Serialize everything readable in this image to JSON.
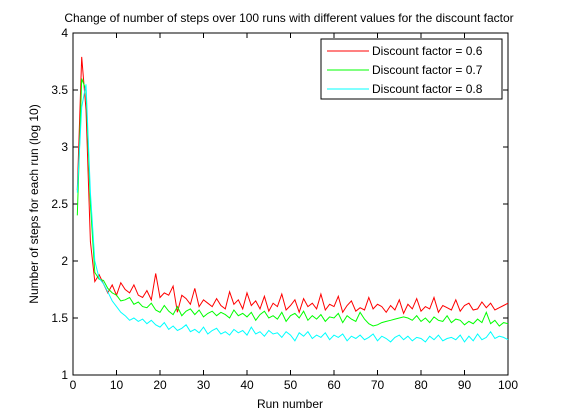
{
  "chart_data": {
    "type": "line",
    "title": "Change of number of steps over 100 runs with different values for the discount factor",
    "xlabel": "Run number",
    "ylabel": "Number of steps for each run (log 10)",
    "xlim": [
      0,
      100
    ],
    "ylim": [
      1,
      4
    ],
    "xticks": [
      "0",
      "10",
      "20",
      "30",
      "40",
      "50",
      "60",
      "70",
      "80",
      "90",
      "100"
    ],
    "yticks": [
      "1",
      "1.5",
      "2",
      "2.5",
      "3",
      "3.5",
      "4"
    ],
    "legend_position": "top-right",
    "grid": false,
    "x": [
      1,
      2,
      3,
      4,
      5,
      6,
      7,
      8,
      9,
      10,
      11,
      12,
      13,
      14,
      15,
      16,
      17,
      18,
      19,
      20,
      21,
      22,
      23,
      24,
      25,
      26,
      27,
      28,
      29,
      30,
      31,
      32,
      33,
      34,
      35,
      36,
      37,
      38,
      39,
      40,
      41,
      42,
      43,
      44,
      45,
      46,
      47,
      48,
      49,
      50,
      51,
      52,
      53,
      54,
      55,
      56,
      57,
      58,
      59,
      60,
      61,
      62,
      63,
      64,
      65,
      66,
      67,
      68,
      69,
      70,
      71,
      72,
      73,
      74,
      75,
      76,
      77,
      78,
      79,
      80,
      81,
      82,
      83,
      84,
      85,
      86,
      87,
      88,
      89,
      90,
      91,
      92,
      93,
      94,
      95,
      96,
      97,
      98,
      99,
      100
    ],
    "series": [
      {
        "name": "Discount factor = 0.6",
        "color": "#ff0000",
        "values": [
          2.62,
          3.79,
          3.33,
          2.17,
          1.82,
          1.88,
          1.8,
          1.72,
          1.79,
          1.7,
          1.81,
          1.75,
          1.72,
          1.79,
          1.7,
          1.68,
          1.74,
          1.66,
          1.89,
          1.68,
          1.72,
          1.7,
          1.78,
          1.55,
          1.7,
          1.67,
          1.62,
          1.76,
          1.6,
          1.66,
          1.63,
          1.6,
          1.67,
          1.61,
          1.58,
          1.73,
          1.62,
          1.66,
          1.58,
          1.72,
          1.61,
          1.65,
          1.58,
          1.69,
          1.56,
          1.63,
          1.6,
          1.71,
          1.57,
          1.61,
          1.66,
          1.55,
          1.67,
          1.6,
          1.63,
          1.58,
          1.71,
          1.57,
          1.62,
          1.6,
          1.69,
          1.55,
          1.61,
          1.65,
          1.56,
          1.59,
          1.57,
          1.68,
          1.58,
          1.62,
          1.6,
          1.55,
          1.61,
          1.57,
          1.66,
          1.54,
          1.62,
          1.58,
          1.67,
          1.56,
          1.6,
          1.58,
          1.68,
          1.55,
          1.61,
          1.59,
          1.57,
          1.66,
          1.56,
          1.61,
          1.63,
          1.57,
          1.58,
          1.64,
          1.59,
          1.63,
          1.57,
          1.59,
          1.61,
          1.63
        ]
      },
      {
        "name": "Discount factor = 0.7",
        "color": "#00ff00",
        "values": [
          2.4,
          3.6,
          3.5,
          2.5,
          1.9,
          1.84,
          1.83,
          1.76,
          1.72,
          1.7,
          1.65,
          1.66,
          1.68,
          1.62,
          1.64,
          1.6,
          1.59,
          1.63,
          1.57,
          1.55,
          1.61,
          1.56,
          1.53,
          1.6,
          1.52,
          1.56,
          1.58,
          1.53,
          1.57,
          1.51,
          1.54,
          1.56,
          1.52,
          1.55,
          1.53,
          1.5,
          1.57,
          1.52,
          1.54,
          1.51,
          1.55,
          1.48,
          1.53,
          1.56,
          1.5,
          1.52,
          1.49,
          1.55,
          1.47,
          1.52,
          1.54,
          1.5,
          1.56,
          1.48,
          1.52,
          1.49,
          1.53,
          1.47,
          1.51,
          1.5,
          1.54,
          1.46,
          1.52,
          1.49,
          1.47,
          1.55,
          1.49,
          1.45,
          1.43,
          1.44,
          1.46,
          1.47,
          1.48,
          1.49,
          1.5,
          1.51,
          1.5,
          1.48,
          1.52,
          1.47,
          1.5,
          1.46,
          1.51,
          1.48,
          1.47,
          1.52,
          1.46,
          1.49,
          1.48,
          1.44,
          1.47,
          1.45,
          1.49,
          1.46,
          1.55,
          1.45,
          1.48,
          1.43,
          1.46,
          1.45
        ]
      },
      {
        "name": "Discount factor = 0.8",
        "color": "#00ffff",
        "values": [
          2.6,
          3.35,
          3.55,
          2.6,
          2.0,
          1.85,
          1.8,
          1.73,
          1.65,
          1.6,
          1.55,
          1.52,
          1.48,
          1.5,
          1.47,
          1.49,
          1.45,
          1.48,
          1.44,
          1.42,
          1.46,
          1.4,
          1.43,
          1.39,
          1.41,
          1.44,
          1.38,
          1.4,
          1.37,
          1.42,
          1.36,
          1.39,
          1.41,
          1.36,
          1.38,
          1.35,
          1.4,
          1.37,
          1.39,
          1.35,
          1.42,
          1.36,
          1.38,
          1.34,
          1.39,
          1.36,
          1.37,
          1.33,
          1.38,
          1.35,
          1.3,
          1.37,
          1.34,
          1.38,
          1.32,
          1.35,
          1.33,
          1.37,
          1.31,
          1.35,
          1.33,
          1.36,
          1.3,
          1.34,
          1.32,
          1.35,
          1.31,
          1.33,
          1.36,
          1.3,
          1.34,
          1.32,
          1.29,
          1.33,
          1.35,
          1.31,
          1.34,
          1.3,
          1.33,
          1.32,
          1.29,
          1.34,
          1.31,
          1.35,
          1.3,
          1.32,
          1.33,
          1.31,
          1.35,
          1.29,
          1.34,
          1.3,
          1.36,
          1.31,
          1.33,
          1.38,
          1.32,
          1.34,
          1.33,
          1.31
        ]
      }
    ]
  }
}
